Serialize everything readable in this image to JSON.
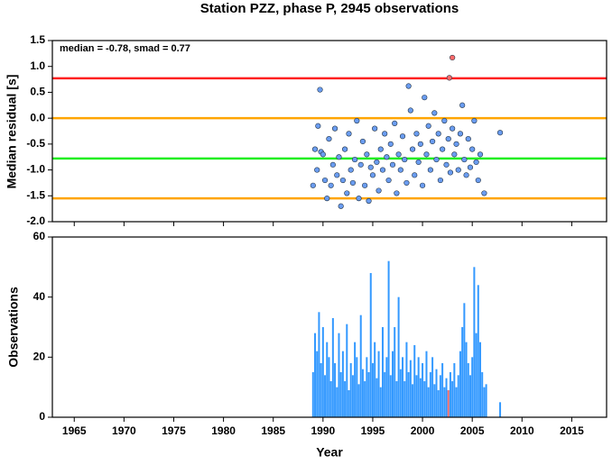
{
  "chart_data": [
    {
      "type": "scatter",
      "title": "Station PZZ, phase P, 2945 observations",
      "ylabel": "Median residual [s]",
      "annotation": "median = -0.78, smad = 0.77",
      "xlim": [
        1962.8,
        2018.5
      ],
      "xticks": [
        1965,
        1970,
        1975,
        1980,
        1985,
        1990,
        1995,
        2000,
        2005,
        2010,
        2015
      ],
      "ylim": [
        -2.0,
        1.5
      ],
      "yticks": [
        1.5,
        {
          "value": 1,
          "label": "1.0"
        },
        0.5,
        {
          "value": 0,
          "label": "0.0"
        },
        -0.5,
        {
          "value": -1,
          "label": "-1.0"
        },
        -1.5,
        {
          "value": -2,
          "label": "-2.0"
        }
      ],
      "reference_lines": [
        {
          "value": 0.77,
          "color": "#ff2020"
        },
        {
          "value": 0,
          "color": "#ffa500"
        },
        {
          "value": -0.78,
          "color": "#22ee22"
        },
        {
          "value": -1.55,
          "color": "#ffa500"
        }
      ],
      "series": [
        {
          "color": "#6a9cf0",
          "x": [
            1989.0,
            1989.2,
            1989.4,
            1989.5,
            1989.7,
            1989.8,
            1990.0,
            1990.2,
            1990.4,
            1990.6,
            1990.8,
            1991.0,
            1991.2,
            1991.4,
            1991.6,
            1991.8,
            1992.0,
            1992.2,
            1992.4,
            1992.6,
            1992.8,
            1993.0,
            1993.2,
            1993.4,
            1993.6,
            1993.8,
            1994.0,
            1994.2,
            1994.4,
            1994.6,
            1994.8,
            1995.0,
            1995.2,
            1995.4,
            1995.6,
            1995.8,
            1996.0,
            1996.2,
            1996.4,
            1996.6,
            1996.8,
            1997.0,
            1997.2,
            1997.4,
            1997.6,
            1997.8,
            1998.0,
            1998.2,
            1998.4,
            1998.6,
            1998.8,
            1999.0,
            1999.2,
            1999.4,
            1999.6,
            1999.8,
            2000.0,
            2000.2,
            2000.4,
            2000.6,
            2000.8,
            2001.0,
            2001.2,
            2001.4,
            2001.6,
            2001.8,
            2002.0,
            2002.2,
            2002.4,
            2002.6,
            2002.8,
            2003.0,
            2003.2,
            2003.4,
            2003.6,
            2003.8,
            2004.0,
            2004.2,
            2004.4,
            2004.6,
            2004.8,
            2005.0,
            2005.2,
            2005.4,
            2005.6,
            2005.8,
            2006.2,
            2007.8
          ],
          "y": [
            -1.3,
            -0.6,
            -1.0,
            -0.15,
            0.55,
            -0.65,
            -0.7,
            -1.2,
            -1.55,
            -0.4,
            -1.3,
            -0.9,
            -0.2,
            -1.1,
            -0.75,
            -1.7,
            -1.2,
            -0.6,
            -1.45,
            -0.3,
            -1.0,
            -1.25,
            -0.8,
            -0.05,
            -1.55,
            -0.9,
            -0.45,
            -1.3,
            -0.7,
            -1.6,
            -0.95,
            -1.1,
            -0.2,
            -0.85,
            -1.4,
            -0.6,
            -1.0,
            -0.3,
            -0.75,
            -1.2,
            -0.5,
            -0.9,
            -0.1,
            -1.45,
            -0.7,
            -1.0,
            -0.35,
            -0.8,
            -1.25,
            0.62,
            0.15,
            -0.6,
            -1.1,
            -0.3,
            -0.85,
            -0.5,
            -1.3,
            0.4,
            -0.7,
            -0.15,
            -1.0,
            -0.45,
            0.1,
            -0.8,
            -0.3,
            -1.2,
            -0.6,
            -0.05,
            -0.9,
            -0.4,
            -1.05,
            -0.2,
            -0.7,
            -0.5,
            -1.0,
            -0.3,
            0.25,
            -0.8,
            -1.1,
            -0.4,
            -0.95,
            -0.6,
            -0.05,
            -0.85,
            -1.2,
            -0.7,
            -1.45,
            -0.28
          ]
        },
        {
          "color": "#ff6a6a",
          "x": [
            2002.7,
            2003.0
          ],
          "y": [
            0.78,
            1.17
          ]
        }
      ]
    },
    {
      "type": "bar",
      "ylabel": "Observations",
      "xlabel": "Year",
      "xlim": [
        1962.8,
        2018.5
      ],
      "xticks": [
        1965,
        1970,
        1975,
        1980,
        1985,
        1990,
        1995,
        2000,
        2005,
        2010,
        2015
      ],
      "ylim": [
        0,
        60
      ],
      "yticks": [
        0,
        20,
        40,
        60
      ],
      "series": [
        {
          "color": "#3399ff",
          "x": [
            1989.0,
            1989.2,
            1989.4,
            1989.6,
            1989.8,
            1990.0,
            1990.2,
            1990.4,
            1990.6,
            1990.8,
            1991.0,
            1991.2,
            1991.4,
            1991.6,
            1991.8,
            1992.0,
            1992.2,
            1992.4,
            1992.6,
            1992.8,
            1993.0,
            1993.2,
            1993.4,
            1993.6,
            1993.8,
            1994.0,
            1994.2,
            1994.4,
            1994.6,
            1994.8,
            1995.0,
            1995.2,
            1995.4,
            1995.6,
            1995.8,
            1996.0,
            1996.2,
            1996.4,
            1996.6,
            1996.8,
            1997.0,
            1997.2,
            1997.4,
            1997.6,
            1997.8,
            1998.0,
            1998.2,
            1998.4,
            1998.6,
            1998.8,
            1999.0,
            1999.2,
            1999.4,
            1999.6,
            1999.8,
            2000.0,
            2000.2,
            2000.4,
            2000.6,
            2000.8,
            2001.0,
            2001.2,
            2001.4,
            2001.6,
            2001.8,
            2002.0,
            2002.2,
            2002.4,
            2002.6,
            2002.8,
            2003.0,
            2003.2,
            2003.4,
            2003.6,
            2003.8,
            2004.0,
            2004.2,
            2004.4,
            2004.6,
            2004.8,
            2005.0,
            2005.2,
            2005.4,
            2005.6,
            2005.8,
            2006.0,
            2006.2,
            2006.4,
            2007.8
          ],
          "values": [
            15,
            28,
            22,
            35,
            18,
            30,
            14,
            25,
            20,
            12,
            33,
            18,
            10,
            28,
            15,
            22,
            12,
            31,
            9,
            18,
            14,
            25,
            20,
            11,
            34,
            16,
            12,
            20,
            15,
            48,
            18,
            25,
            13,
            22,
            10,
            30,
            15,
            20,
            52,
            14,
            22,
            30,
            12,
            40,
            16,
            20,
            12,
            25,
            15,
            19,
            11,
            24,
            14,
            20,
            13,
            18,
            12,
            22,
            10,
            15,
            20,
            11,
            16,
            9,
            14,
            18,
            10,
            13,
            9,
            15,
            12,
            18,
            10,
            14,
            22,
            30,
            38,
            25,
            18,
            14,
            20,
            50,
            28,
            44,
            25,
            15,
            10,
            11,
            5
          ]
        },
        {
          "color": "#ff7070",
          "x": [
            2002.6
          ],
          "values": [
            9
          ]
        }
      ]
    }
  ]
}
